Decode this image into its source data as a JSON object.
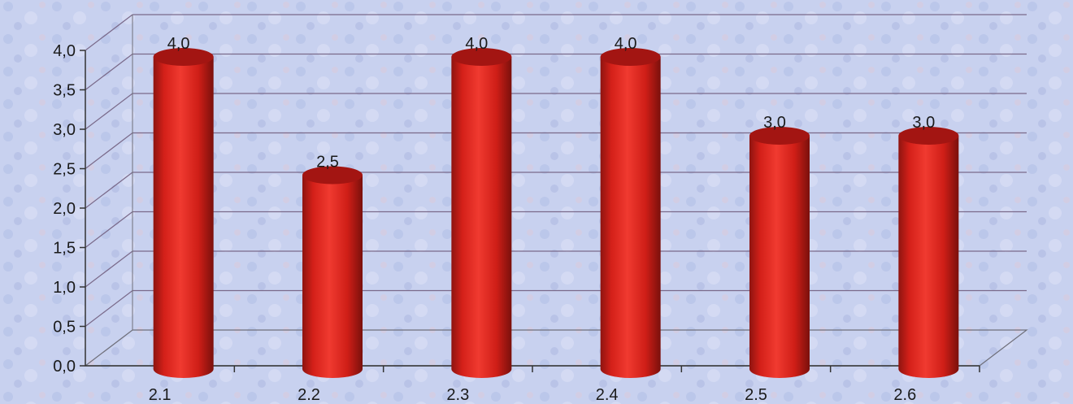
{
  "chart_data": {
    "type": "bar",
    "categories": [
      "2.1",
      "2.2",
      "2.3",
      "2.4",
      "2.5",
      "2.6"
    ],
    "values": [
      4.0,
      2.5,
      4.0,
      4.0,
      3.0,
      3.0
    ],
    "data_labels": [
      "4,0",
      "2,5",
      "4,0",
      "4,0",
      "3,0",
      "3,0"
    ],
    "y_ticks": [
      0,
      0.5,
      1.0,
      1.5,
      2.0,
      2.5,
      3.0,
      3.5,
      4.0
    ],
    "y_tick_labels": [
      "0,0",
      "0,5",
      "1,0",
      "1,5",
      "2,0",
      "2,5",
      "3,0",
      "3,5",
      "4,0"
    ],
    "ylim": [
      0,
      4.0
    ],
    "title": "",
    "xlabel": "",
    "ylabel": "",
    "grid": true,
    "bar_shape": "cylinder",
    "bar_color": "#e2231f",
    "bar_top_color": "#a31512",
    "background_color": "#c9d2ee",
    "gridline_color": "#7a6a8a"
  }
}
